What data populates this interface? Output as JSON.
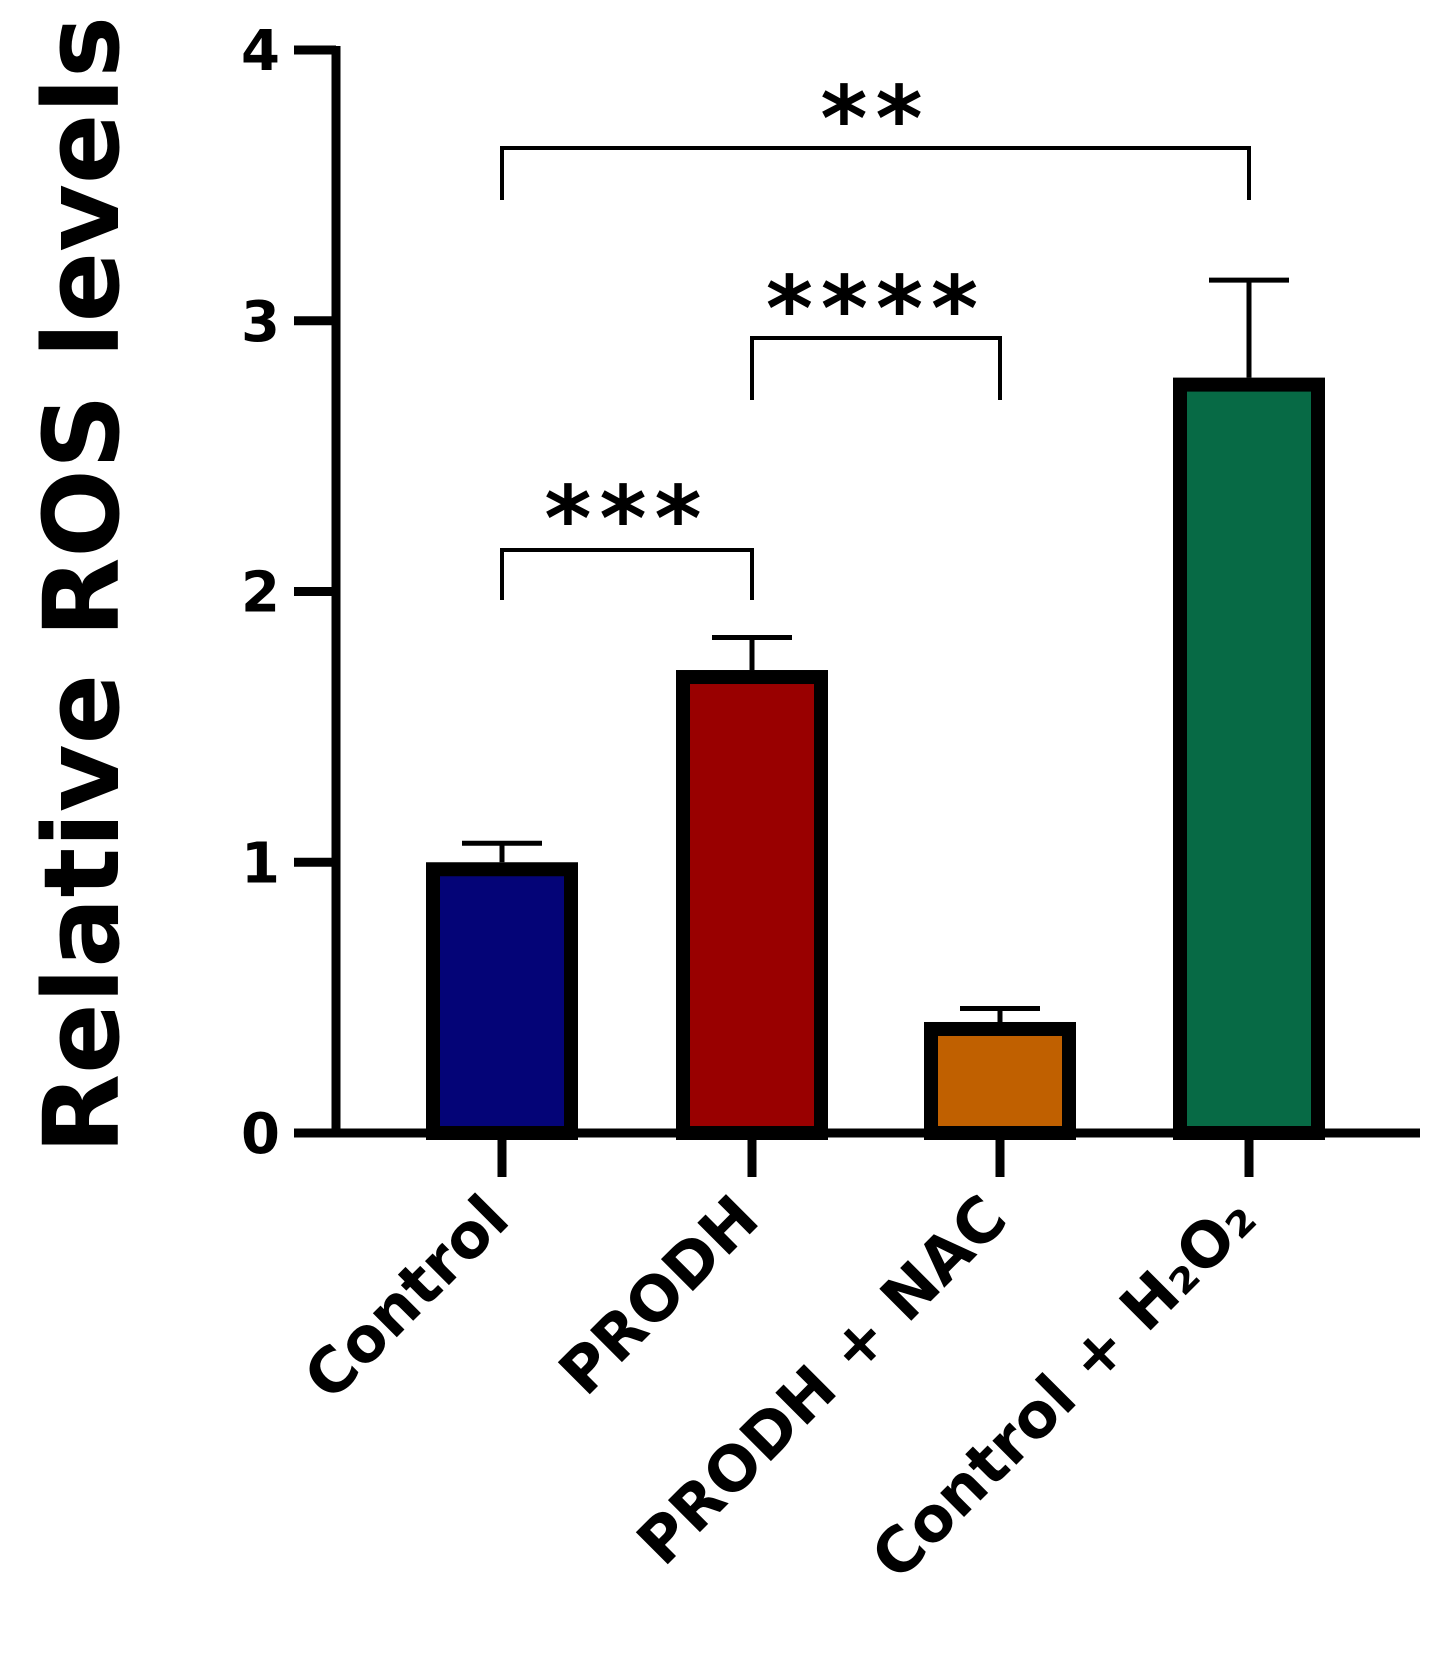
{
  "chart_data": {
    "type": "bar",
    "title": "",
    "xlabel": "",
    "ylabel": "Relative ROS levels",
    "ylim": [
      0,
      4
    ],
    "yticks": [
      0,
      1,
      2,
      3,
      4
    ],
    "categories": [
      "Control",
      "PRODH",
      "PRODH + NAC",
      "Control + H₂O₂"
    ],
    "values": [
      1.0,
      1.71,
      0.41,
      2.79
    ],
    "errors": [
      0.07,
      0.12,
      0.05,
      0.36
    ],
    "bar_colors": [
      "#040477",
      "#990000",
      "#c06000",
      "#076a45"
    ],
    "significance": [
      {
        "from": 0,
        "to": 1,
        "label": "***"
      },
      {
        "from": 1,
        "to": 2,
        "label": "****"
      },
      {
        "from": 0,
        "to": 3,
        "label": "**"
      }
    ],
    "grid": false,
    "legend": "none"
  }
}
